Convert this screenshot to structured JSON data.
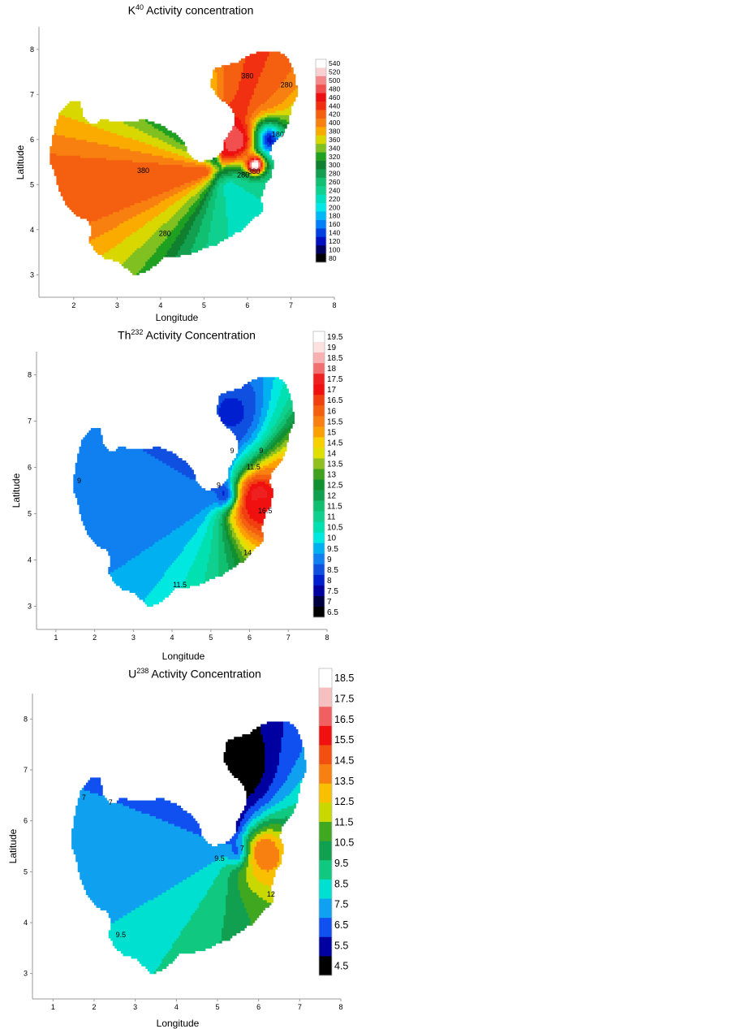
{
  "chart_data": [
    {
      "type": "heatmap",
      "title_main": "K",
      "title_sup": "40",
      "title_rest": " Activity concentration",
      "xlabel": "Longitude",
      "ylabel": "Latitude",
      "xticks": [
        "2",
        "3",
        "4",
        "5",
        "6",
        "7",
        "8"
      ],
      "yticks": [
        "3",
        "4",
        "5",
        "6",
        "7",
        "8"
      ],
      "xlim": [
        1.2,
        8
      ],
      "ylim": [
        2.5,
        8.5
      ],
      "colorbar": {
        "ticks": [
          "540",
          "520",
          "500",
          "480",
          "460",
          "440",
          "420",
          "400",
          "380",
          "360",
          "340",
          "320",
          "300",
          "280",
          "260",
          "240",
          "220",
          "200",
          "180",
          "160",
          "140",
          "120",
          "100",
          "80"
        ],
        "colors": [
          "#ffffff",
          "#fbd0d0",
          "#f58888",
          "#f25050",
          "#ee1010",
          "#f03010",
          "#f46010",
          "#f88010",
          "#fbaa00",
          "#d8d800",
          "#80c020",
          "#20a020",
          "#108030",
          "#12a050",
          "#10c070",
          "#10d090",
          "#00e0c0",
          "#00e8e8",
          "#00b8f8",
          "#0080f8",
          "#0040e0",
          "#0010c0",
          "#000060",
          "#000000"
        ],
        "low": 80,
        "high": 540
      },
      "contour_labels": [
        {
          "text": "380",
          "x": 6.0,
          "y": 7.4
        },
        {
          "text": "280",
          "x": 6.9,
          "y": 7.2
        },
        {
          "text": "180",
          "x": 6.7,
          "y": 6.1
        },
        {
          "text": "380",
          "x": 3.6,
          "y": 5.3
        },
        {
          "text": "280",
          "x": 5.9,
          "y": 5.2
        },
        {
          "text": "380",
          "x": 6.15,
          "y": 5.28
        },
        {
          "text": "280",
          "x": 4.1,
          "y": 3.9
        }
      ],
      "field": {
        "base": 300,
        "fan": {
          "x": 5.4,
          "y": 5.35,
          "values": [
            [
              -180,
              420
            ],
            [
              -160,
              410
            ],
            [
              -150,
              380
            ],
            [
              -130,
              330
            ],
            [
              -115,
              280
            ],
            [
              -95,
              240
            ],
            [
              -60,
              220
            ],
            [
              -10,
              250
            ],
            [
              20,
              290
            ],
            [
              50,
              400
            ],
            [
              70,
              430
            ],
            [
              85,
              420
            ],
            [
              95,
              380
            ],
            [
              110,
              300
            ],
            [
              125,
              260
            ]
          ]
        },
        "blobs": [
          {
            "x": 6.42,
            "y": 6.0,
            "r": 0.28,
            "v": 80
          },
          {
            "x": 6.18,
            "y": 5.45,
            "r": 0.15,
            "v": 560
          },
          {
            "x": 5.75,
            "y": 6.0,
            "r": 0.35,
            "v": 480
          },
          {
            "x": 6.7,
            "y": 4.15,
            "r": 0.2,
            "v": 180
          }
        ]
      }
    },
    {
      "type": "heatmap",
      "title_main": "Th",
      "title_sup": "232",
      "title_rest": " Activity Concentration",
      "xlabel": "Longitude",
      "ylabel": "Latitude",
      "xticks": [
        "1",
        "2",
        "3",
        "4",
        "5",
        "6",
        "7",
        "8"
      ],
      "yticks": [
        "3",
        "4",
        "5",
        "6",
        "7",
        "8"
      ],
      "xlim": [
        0.5,
        8
      ],
      "ylim": [
        2.5,
        8.5
      ],
      "colorbar": {
        "ticks": [
          "19.5",
          "19",
          "18.5",
          "18",
          "17.5",
          "17",
          "16.5",
          "16",
          "15.5",
          "15",
          "14.5",
          "14",
          "13.5",
          "13",
          "12.5",
          "12",
          "11.5",
          "11",
          "10.5",
          "10",
          "9.5",
          "9",
          "8.5",
          "8",
          "7.5",
          "7",
          "6.5"
        ],
        "colors": [
          "#ffffff",
          "#fde0e0",
          "#f8b0b0",
          "#f07070",
          "#ee2020",
          "#f01010",
          "#f04010",
          "#f46010",
          "#f88010",
          "#fba000",
          "#f8d000",
          "#e0e000",
          "#90c020",
          "#40a020",
          "#109030",
          "#10a050",
          "#10c070",
          "#10d090",
          "#00e0b0",
          "#00e8e0",
          "#00b0f0",
          "#1080f0",
          "#1050e0",
          "#0020d0",
          "#0000a0",
          "#000040",
          "#000000"
        ],
        "low": 6.5,
        "high": 19.5
      },
      "contour_labels": [
        {
          "text": "9",
          "x": 1.6,
          "y": 5.7
        },
        {
          "text": "9",
          "x": 5.55,
          "y": 6.35
        },
        {
          "text": "9",
          "x": 6.3,
          "y": 6.35
        },
        {
          "text": "11.5",
          "x": 6.1,
          "y": 6.0
        },
        {
          "text": "9",
          "x": 5.2,
          "y": 5.6
        },
        {
          "text": "16.5",
          "x": 6.4,
          "y": 5.05
        },
        {
          "text": "14",
          "x": 5.95,
          "y": 4.15
        },
        {
          "text": "11.5",
          "x": 4.2,
          "y": 3.45
        }
      ],
      "field": {
        "base": 10,
        "fan": {
          "x": 5.3,
          "y": 5.35,
          "values": [
            [
              -180,
              9.0
            ],
            [
              -160,
              9.2
            ],
            [
              -140,
              9.6
            ],
            [
              -120,
              10.3
            ],
            [
              -100,
              11.0
            ],
            [
              -80,
              12.0
            ],
            [
              -60,
              13.5
            ],
            [
              -30,
              15.5
            ],
            [
              0,
              16.0
            ],
            [
              30,
              14.5
            ],
            [
              50,
              11.0
            ],
            [
              70,
              9.3
            ],
            [
              90,
              8.8
            ],
            [
              110,
              8.7
            ],
            [
              140,
              8.8
            ],
            [
              165,
              9.0
            ]
          ]
        },
        "blobs": [
          {
            "x": 5.45,
            "y": 5.4,
            "r": 0.22,
            "v": 6.5
          },
          {
            "x": 6.25,
            "y": 5.38,
            "r": 0.18,
            "v": 19.5
          },
          {
            "x": 6.3,
            "y": 5.2,
            "r": 0.5,
            "v": 17.0
          },
          {
            "x": 5.6,
            "y": 7.2,
            "r": 0.5,
            "v": 8.3
          }
        ]
      }
    },
    {
      "type": "heatmap",
      "title_main": "U",
      "title_sup": "238",
      "title_rest": " Activity Concentration",
      "xlabel": "Longitude",
      "ylabel": "Latitude",
      "xticks": [
        "1",
        "2",
        "3",
        "4",
        "5",
        "6",
        "7",
        "8"
      ],
      "yticks": [
        "3",
        "4",
        "5",
        "6",
        "7",
        "8"
      ],
      "xlim": [
        0.5,
        8
      ],
      "ylim": [
        2.5,
        8.5
      ],
      "colorbar": {
        "ticks": [
          "18.5",
          "17.5",
          "16.5",
          "15.5",
          "14.5",
          "13.5",
          "12.5",
          "11.5",
          "10.5",
          "9.5",
          "8.5",
          "7.5",
          "6.5",
          "5.5",
          "4.5"
        ],
        "colors": [
          "#ffffff",
          "#f7c0c0",
          "#f06060",
          "#f01010",
          "#f25010",
          "#f88010",
          "#f8c000",
          "#c8d800",
          "#40a820",
          "#10a050",
          "#10c880",
          "#00e0d0",
          "#10a0f0",
          "#1050f0",
          "#0000a0",
          "#000000"
        ],
        "low": 4.5,
        "high": 18.5
      },
      "contour_labels": [
        {
          "text": "7",
          "x": 1.75,
          "y": 6.45
        },
        {
          "text": "7",
          "x": 2.4,
          "y": 6.35
        },
        {
          "text": "9.5",
          "x": 5.05,
          "y": 5.25
        },
        {
          "text": "7",
          "x": 5.6,
          "y": 5.45
        },
        {
          "text": "12",
          "x": 6.3,
          "y": 4.55
        },
        {
          "text": "9.5",
          "x": 2.65,
          "y": 3.75
        }
      ],
      "field": {
        "base": 8,
        "fan": {
          "x": 5.45,
          "y": 5.45,
          "values": [
            [
              -180,
              7.5
            ],
            [
              -160,
              7.8
            ],
            [
              -140,
              8.5
            ],
            [
              -120,
              9.2
            ],
            [
              -100,
              9.8
            ],
            [
              -80,
              10.5
            ],
            [
              -60,
              11.0
            ],
            [
              -30,
              11.8
            ],
            [
              0,
              11.0
            ],
            [
              30,
              9.0
            ],
            [
              50,
              7.2
            ],
            [
              70,
              6.0
            ],
            [
              90,
              5.0
            ],
            [
              110,
              5.5
            ],
            [
              140,
              6.5
            ],
            [
              165,
              7.2
            ]
          ]
        },
        "blobs": [
          {
            "x": 5.5,
            "y": 7.1,
            "r": 0.55,
            "v": 4.5
          },
          {
            "x": 5.55,
            "y": 5.4,
            "r": 0.2,
            "v": 5.0
          },
          {
            "x": 6.15,
            "y": 5.42,
            "r": 0.16,
            "v": 18.5
          },
          {
            "x": 6.25,
            "y": 5.3,
            "r": 0.45,
            "v": 13.5
          }
        ]
      }
    }
  ]
}
